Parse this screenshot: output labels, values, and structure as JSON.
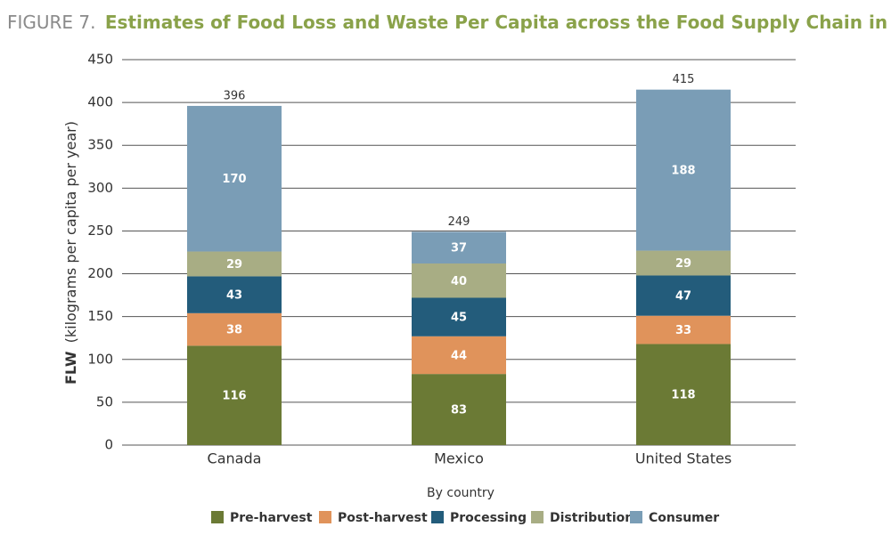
{
  "chart_data": {
    "type": "stacked-bar",
    "figure_label": "FIGURE 7.",
    "title": "Estimates of Food Loss and Waste Per Capita across the Food Supply Chain in North America",
    "ylabel_bold": "FLW",
    "ylabel": "(kilograms per capita per year)",
    "xlabel": "By country",
    "categories": [
      "Canada",
      "Mexico",
      "United States"
    ],
    "series": [
      {
        "name": "Pre-harvest",
        "color": "#6b7a35",
        "values": [
          116,
          83,
          118
        ]
      },
      {
        "name": "Post-harvest",
        "color": "#e0935b",
        "values": [
          38,
          44,
          33
        ]
      },
      {
        "name": "Processing",
        "color": "#235c7b",
        "values": [
          43,
          45,
          47
        ]
      },
      {
        "name": "Distribution",
        "color": "#a8ad84",
        "values": [
          29,
          40,
          29
        ]
      },
      {
        "name": "Consumer",
        "color": "#7a9db6",
        "values": [
          170,
          37,
          188
        ]
      }
    ],
    "totals": [
      396,
      249,
      415
    ],
    "ylim": [
      0,
      450
    ],
    "yticks": [
      0,
      50,
      100,
      150,
      200,
      250,
      300,
      350,
      400,
      450
    ],
    "grid": true
  }
}
